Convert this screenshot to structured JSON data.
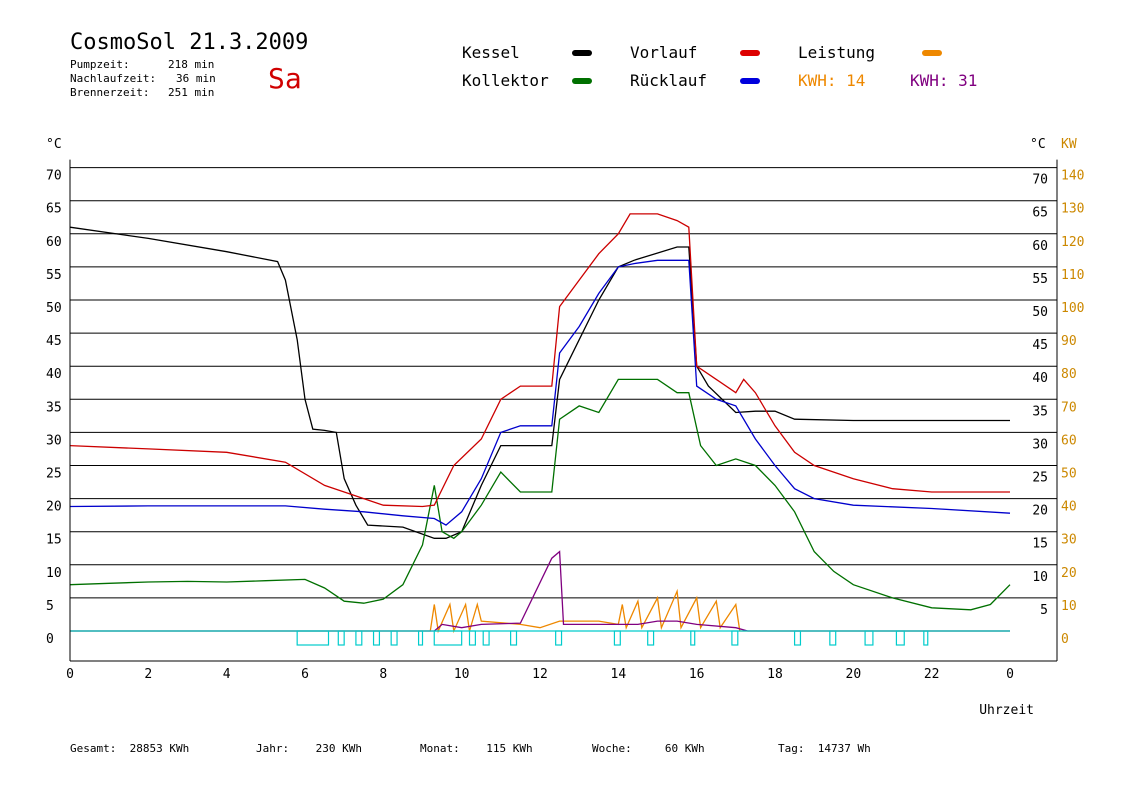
{
  "header": {
    "title": "CosmoSol 21.3.2009",
    "day": "Sa",
    "stats": [
      {
        "label": "Pumpzeit:",
        "value": "218 min"
      },
      {
        "label": "Nachlaufzeit:",
        "value": "36 min"
      },
      {
        "label": "Brennerzeit:",
        "value": "251 min"
      }
    ]
  },
  "legend": {
    "kessel": "Kessel",
    "kollektor": "Kollektor",
    "vorlauf": "Vorlauf",
    "ruecklauf": "Rücklauf",
    "leistung": "Leistung",
    "kwh1": "KWH: 14",
    "kwh2": "KWH: 31"
  },
  "colors": {
    "kessel": "#000000",
    "kollektor": "#007000",
    "vorlauf": "#cc0000",
    "ruecklauf": "#0000cc",
    "leistung": "#ee8800",
    "kwh2": "#800080",
    "pump": "#00cccc",
    "axis_right": "#cc8800"
  },
  "footer": {
    "gesamt_label": "Gesamt:",
    "gesamt": "28853 KWh",
    "jahr_label": "Jahr:",
    "jahr": "230 KWh",
    "monat_label": "Monat:",
    "monat": "115 KWh",
    "woche_label": "Woche:",
    "woche": "60 KWh",
    "tag_label": "Tag:",
    "tag": "14737 Wh"
  },
  "chart_data": {
    "type": "line",
    "xlabel": "Uhrzeit",
    "ylabel_left": "°C",
    "ylabel_right_temp": "°C",
    "ylabel_right_power": "KW",
    "x_ticks": [
      "0",
      "2",
      "4",
      "6",
      "8",
      "10",
      "12",
      "14",
      "16",
      "18",
      "20",
      "22",
      "0"
    ],
    "y_ticks_left": [
      "0",
      "5",
      "10",
      "15",
      "20",
      "25",
      "30",
      "35",
      "40",
      "45",
      "50",
      "55",
      "60",
      "65",
      "70"
    ],
    "y_ticks_right_temp": [
      "5",
      "10",
      "15",
      "20",
      "25",
      "30",
      "35",
      "40",
      "45",
      "50",
      "55",
      "60",
      "65",
      "70"
    ],
    "y_ticks_right_power": [
      "0",
      "10",
      "20",
      "30",
      "40",
      "50",
      "60",
      "70",
      "80",
      "90",
      "100",
      "110",
      "120",
      "130",
      "140"
    ],
    "xlim": [
      0,
      24
    ],
    "ylim": [
      0,
      70
    ],
    "series": [
      {
        "name": "Kessel",
        "key": "kessel",
        "points": [
          [
            0,
            61
          ],
          [
            2,
            59.3
          ],
          [
            4,
            57.3
          ],
          [
            5.3,
            55.8
          ],
          [
            5.5,
            53
          ],
          [
            5.8,
            44
          ],
          [
            6.0,
            35
          ],
          [
            6.2,
            30.5
          ],
          [
            6.5,
            30.3
          ],
          [
            6.8,
            30
          ],
          [
            7.0,
            23
          ],
          [
            7.3,
            19
          ],
          [
            7.6,
            16
          ],
          [
            8.5,
            15.7
          ],
          [
            9.3,
            14
          ],
          [
            9.6,
            14
          ],
          [
            10.0,
            15
          ],
          [
            10.5,
            22
          ],
          [
            11.0,
            28
          ],
          [
            12.3,
            28
          ],
          [
            12.5,
            38
          ],
          [
            13.0,
            44
          ],
          [
            13.5,
            50
          ],
          [
            14.0,
            55
          ],
          [
            14.4,
            56
          ],
          [
            15.5,
            58
          ],
          [
            15.8,
            58
          ],
          [
            16.0,
            40
          ],
          [
            16.3,
            37
          ],
          [
            17.0,
            33
          ],
          [
            17.5,
            33.2
          ],
          [
            18.0,
            33.2
          ],
          [
            18.5,
            32
          ],
          [
            20,
            31.8
          ],
          [
            22,
            31.8
          ],
          [
            24,
            31.8
          ]
        ]
      },
      {
        "name": "Kollektor",
        "key": "kollektor",
        "points": [
          [
            0,
            7
          ],
          [
            1,
            7.2
          ],
          [
            2,
            7.4
          ],
          [
            3,
            7.5
          ],
          [
            4,
            7.4
          ],
          [
            5,
            7.6
          ],
          [
            6,
            7.8
          ],
          [
            6.5,
            6.5
          ],
          [
            7,
            4.5
          ],
          [
            7.5,
            4.2
          ],
          [
            8,
            4.8
          ],
          [
            8.5,
            7
          ],
          [
            9.0,
            13
          ],
          [
            9.3,
            22
          ],
          [
            9.5,
            15
          ],
          [
            9.8,
            14
          ],
          [
            10,
            15
          ],
          [
            10.5,
            19
          ],
          [
            11,
            24
          ],
          [
            11.5,
            21
          ],
          [
            12.3,
            21
          ],
          [
            12.5,
            32
          ],
          [
            13,
            34
          ],
          [
            13.5,
            33
          ],
          [
            14,
            38
          ],
          [
            14.4,
            38
          ],
          [
            15,
            38
          ],
          [
            15.5,
            36
          ],
          [
            15.8,
            36
          ],
          [
            16.1,
            28
          ],
          [
            16.5,
            25
          ],
          [
            17,
            26
          ],
          [
            17.5,
            25
          ],
          [
            18,
            22
          ],
          [
            18.5,
            18
          ],
          [
            19,
            12
          ],
          [
            19.5,
            9
          ],
          [
            20,
            7
          ],
          [
            21,
            5
          ],
          [
            22,
            3.5
          ],
          [
            23,
            3.2
          ],
          [
            23.5,
            4
          ],
          [
            24,
            7
          ]
        ]
      },
      {
        "name": "Vorlauf",
        "key": "vorlauf",
        "points": [
          [
            0,
            28
          ],
          [
            2,
            27.5
          ],
          [
            4,
            27
          ],
          [
            5.5,
            25.5
          ],
          [
            6.5,
            22
          ],
          [
            7,
            21
          ],
          [
            8,
            19
          ],
          [
            9,
            18.8
          ],
          [
            9.3,
            19
          ],
          [
            9.8,
            25
          ],
          [
            10.5,
            29
          ],
          [
            11,
            35
          ],
          [
            11.5,
            37
          ],
          [
            12.3,
            37
          ],
          [
            12.5,
            49
          ],
          [
            13,
            53
          ],
          [
            13.5,
            57
          ],
          [
            14,
            60
          ],
          [
            14.3,
            63
          ],
          [
            15,
            63
          ],
          [
            15.5,
            62
          ],
          [
            15.8,
            61
          ],
          [
            16,
            40
          ],
          [
            16.5,
            38
          ],
          [
            17,
            36
          ],
          [
            17.2,
            38
          ],
          [
            17.5,
            36
          ],
          [
            18,
            31
          ],
          [
            18.5,
            27
          ],
          [
            19,
            25
          ],
          [
            20,
            23
          ],
          [
            21,
            21.5
          ],
          [
            22,
            21
          ],
          [
            24,
            21
          ]
        ]
      },
      {
        "name": "Rücklauf",
        "key": "ruecklauf",
        "points": [
          [
            0,
            18.8
          ],
          [
            2,
            18.9
          ],
          [
            4,
            18.9
          ],
          [
            5.5,
            18.9
          ],
          [
            6.5,
            18.4
          ],
          [
            7.5,
            18
          ],
          [
            8.5,
            17.4
          ],
          [
            9.3,
            17
          ],
          [
            9.6,
            16
          ],
          [
            10,
            18
          ],
          [
            10.5,
            23
          ],
          [
            11,
            30
          ],
          [
            11.5,
            31
          ],
          [
            12.3,
            31
          ],
          [
            12.5,
            42
          ],
          [
            13,
            46
          ],
          [
            13.5,
            51
          ],
          [
            14,
            55
          ],
          [
            14.4,
            55.5
          ],
          [
            15,
            56
          ],
          [
            15.5,
            56
          ],
          [
            15.8,
            56
          ],
          [
            16,
            37
          ],
          [
            16.5,
            35
          ],
          [
            17,
            34
          ],
          [
            17.5,
            29
          ],
          [
            18,
            25
          ],
          [
            18.5,
            21.5
          ],
          [
            19,
            20
          ],
          [
            20,
            19
          ],
          [
            22,
            18.5
          ],
          [
            24,
            17.8
          ]
        ]
      },
      {
        "name": "Leistung",
        "key": "leistung",
        "points": [
          [
            0,
            0
          ],
          [
            9.2,
            0
          ],
          [
            9.3,
            4
          ],
          [
            9.4,
            0
          ],
          [
            9.7,
            4
          ],
          [
            9.8,
            0
          ],
          [
            10.1,
            4
          ],
          [
            10.2,
            0
          ],
          [
            10.4,
            4
          ],
          [
            10.5,
            1.5
          ],
          [
            11.5,
            1
          ],
          [
            12.0,
            0.5
          ],
          [
            12.5,
            1.5
          ],
          [
            13.5,
            1.5
          ],
          [
            14.0,
            1
          ],
          [
            14.1,
            4
          ],
          [
            14.2,
            0.5
          ],
          [
            14.5,
            4.5
          ],
          [
            14.6,
            0.5
          ],
          [
            15.0,
            5
          ],
          [
            15.1,
            0.5
          ],
          [
            15.5,
            6
          ],
          [
            15.6,
            0.5
          ],
          [
            16.0,
            5
          ],
          [
            16.1,
            0.5
          ],
          [
            16.5,
            4.5
          ],
          [
            16.6,
            0.5
          ],
          [
            17.0,
            4
          ],
          [
            17.1,
            0
          ],
          [
            24,
            0
          ]
        ]
      },
      {
        "name": "KWH: 31",
        "key": "kwh2",
        "points": [
          [
            0,
            0
          ],
          [
            9.3,
            0
          ],
          [
            9.5,
            1
          ],
          [
            10,
            0.5
          ],
          [
            10.5,
            1
          ],
          [
            11.5,
            1.2
          ],
          [
            12.3,
            11
          ],
          [
            12.5,
            12
          ],
          [
            12.6,
            1
          ],
          [
            13,
            1
          ],
          [
            14,
            1
          ],
          [
            14.5,
            1
          ],
          [
            15,
            1.5
          ],
          [
            15.5,
            1.5
          ],
          [
            16,
            1
          ],
          [
            17,
            0.5
          ],
          [
            17.3,
            0
          ],
          [
            24,
            0
          ]
        ]
      }
    ],
    "pump_intervals": [
      [
        5.8,
        6.6
      ],
      [
        6.85,
        7.0
      ],
      [
        7.3,
        7.45
      ],
      [
        7.75,
        7.9
      ],
      [
        8.2,
        8.35
      ],
      [
        8.9,
        9.0
      ],
      [
        9.3,
        10.0
      ],
      [
        10.2,
        10.35
      ],
      [
        10.55,
        10.7
      ],
      [
        11.25,
        11.4
      ],
      [
        12.4,
        12.55
      ],
      [
        13.9,
        14.05
      ],
      [
        14.75,
        14.9
      ],
      [
        15.85,
        15.95
      ],
      [
        16.9,
        17.05
      ],
      [
        18.5,
        18.65
      ],
      [
        19.4,
        19.55
      ],
      [
        20.3,
        20.5
      ],
      [
        21.1,
        21.3
      ],
      [
        21.8,
        21.9
      ]
    ]
  }
}
